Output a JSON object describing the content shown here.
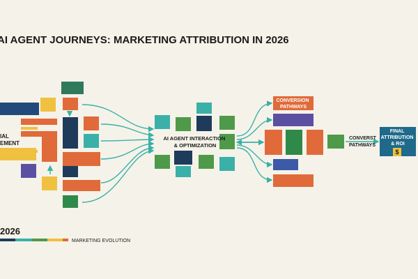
{
  "header": {
    "title": "AI AGENT JOURNEYS: MARKETING ATTRIBUTION IN 2026"
  },
  "left_label": {
    "lines": [
      "IAL",
      "EMENT"
    ]
  },
  "center_label": {
    "lines": [
      "AI AGENT INTERACTION",
      "& OPTIMIZATION"
    ]
  },
  "conversion_label": {
    "lines": [
      "CONVERSION",
      "PATHWAYS"
    ]
  },
  "convert_label": {
    "lines": [
      "CONVERST",
      "PATHWAYS"
    ]
  },
  "final_label": {
    "lines": [
      "FINAL",
      "ATTRIBUTION",
      "& ROI"
    ],
    "icon": "$"
  },
  "footer": {
    "year": "2026",
    "caption": "MARKETING EVOLUTION"
  }
}
